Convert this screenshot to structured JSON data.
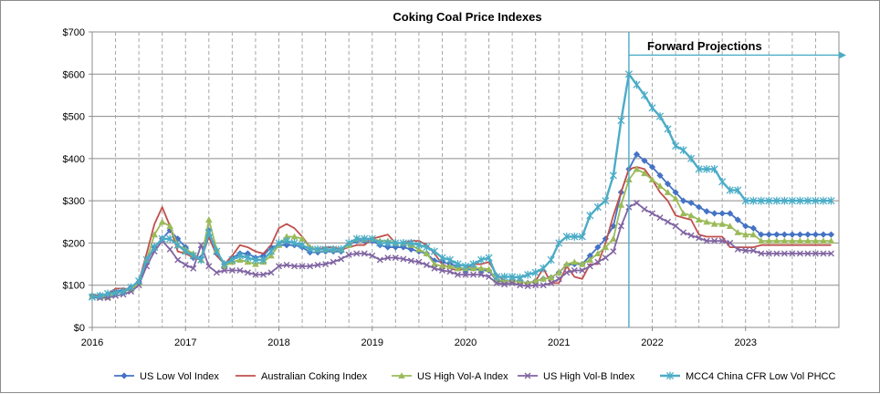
{
  "chart_data": {
    "type": "line",
    "title": "Coking Coal Price Indexes",
    "xlabel": "",
    "ylabel": "",
    "ylim": [
      0,
      700
    ],
    "xlim": [
      "2016-01-01",
      "2024-01-01"
    ],
    "y_ticks": [
      "$0",
      "$100",
      "$200",
      "$300",
      "$400",
      "$500",
      "$600",
      "$700"
    ],
    "x_ticks": [
      "2016",
      "2017",
      "2018",
      "2019",
      "2020",
      "2021",
      "2022",
      "2023"
    ],
    "grid": {
      "horizontal": true,
      "vertical": "dashed-quarterly"
    },
    "legend_position": "bottom",
    "annotation": {
      "text": "Forward Projections",
      "date": "2021-10-01",
      "y": 645,
      "color": "#4BACC6"
    },
    "x": [
      "2016-01",
      "2016-02",
      "2016-03",
      "2016-04",
      "2016-05",
      "2016-06",
      "2016-07",
      "2016-08",
      "2016-09",
      "2016-10",
      "2016-11",
      "2016-12",
      "2017-01",
      "2017-02",
      "2017-03",
      "2017-04",
      "2017-05",
      "2017-06",
      "2017-07",
      "2017-08",
      "2017-09",
      "2017-10",
      "2017-11",
      "2017-12",
      "2018-01",
      "2018-02",
      "2018-03",
      "2018-04",
      "2018-05",
      "2018-06",
      "2018-07",
      "2018-08",
      "2018-09",
      "2018-10",
      "2018-11",
      "2018-12",
      "2019-01",
      "2019-02",
      "2019-03",
      "2019-04",
      "2019-05",
      "2019-06",
      "2019-07",
      "2019-08",
      "2019-09",
      "2019-10",
      "2019-11",
      "2019-12",
      "2020-01",
      "2020-02",
      "2020-03",
      "2020-04",
      "2020-05",
      "2020-06",
      "2020-07",
      "2020-08",
      "2020-09",
      "2020-10",
      "2020-11",
      "2020-12",
      "2021-01",
      "2021-02",
      "2021-03",
      "2021-04",
      "2021-05",
      "2021-06",
      "2021-07",
      "2021-08",
      "2021-09",
      "2021-10",
      "2021-11",
      "2021-12",
      "2022-01",
      "2022-02",
      "2022-03",
      "2022-04",
      "2022-05",
      "2022-06",
      "2022-07",
      "2022-08",
      "2022-09",
      "2022-10",
      "2022-11",
      "2022-12",
      "2023-01",
      "2023-02",
      "2023-03",
      "2023-04",
      "2023-05",
      "2023-06",
      "2023-07",
      "2023-08",
      "2023-09",
      "2023-10",
      "2023-11",
      "2023-12"
    ],
    "series": [
      {
        "name": "US Low Vol Index",
        "color": "#4472C4",
        "marker": "diamond",
        "values": [
          75,
          75,
          78,
          85,
          88,
          95,
          108,
          155,
          190,
          210,
          230,
          210,
          190,
          165,
          165,
          230,
          175,
          150,
          165,
          175,
          175,
          165,
          170,
          190,
          195,
          195,
          195,
          190,
          178,
          178,
          180,
          180,
          180,
          195,
          205,
          205,
          205,
          195,
          190,
          190,
          190,
          185,
          180,
          175,
          158,
          155,
          150,
          145,
          135,
          140,
          135,
          135,
          110,
          108,
          110,
          108,
          105,
          110,
          115,
          118,
          130,
          148,
          150,
          150,
          170,
          190,
          210,
          240,
          320,
          375,
          410,
          395,
          380,
          360,
          340,
          320,
          300,
          295,
          285,
          275,
          270,
          270,
          270,
          255,
          240,
          235,
          220,
          220,
          220,
          220,
          220,
          220,
          220,
          220,
          220,
          220
        ]
      },
      {
        "name": "Australian Coking Index",
        "color": "#C0504D",
        "marker": "none",
        "values": [
          78,
          75,
          78,
          92,
          92,
          90,
          108,
          175,
          245,
          285,
          240,
          180,
          175,
          165,
          160,
          215,
          170,
          150,
          170,
          195,
          190,
          180,
          175,
          195,
          235,
          245,
          235,
          215,
          190,
          185,
          190,
          190,
          185,
          190,
          195,
          195,
          210,
          215,
          220,
          200,
          200,
          205,
          205,
          195,
          175,
          150,
          140,
          135,
          140,
          150,
          150,
          155,
          125,
          110,
          110,
          108,
          105,
          110,
          140,
          105,
          105,
          145,
          120,
          115,
          150,
          150,
          200,
          265,
          320,
          375,
          380,
          375,
          350,
          320,
          300,
          265,
          260,
          255,
          220,
          215,
          215,
          215,
          190,
          190,
          190,
          190,
          195,
          195,
          195,
          195,
          195,
          195,
          195,
          195,
          195,
          195
        ]
      },
      {
        "name": "US High Vol-A Index",
        "color": "#9BBB59",
        "marker": "triangle",
        "values": [
          75,
          72,
          72,
          80,
          85,
          90,
          105,
          160,
          220,
          250,
          240,
          195,
          185,
          175,
          160,
          255,
          185,
          145,
          155,
          160,
          155,
          150,
          155,
          170,
          195,
          215,
          215,
          210,
          190,
          185,
          185,
          185,
          185,
          195,
          210,
          210,
          210,
          205,
          205,
          200,
          200,
          195,
          185,
          175,
          150,
          145,
          145,
          140,
          140,
          140,
          140,
          138,
          112,
          110,
          110,
          108,
          105,
          110,
          115,
          118,
          130,
          150,
          155,
          150,
          160,
          175,
          190,
          210,
          290,
          350,
          375,
          365,
          350,
          335,
          320,
          305,
          270,
          265,
          255,
          250,
          245,
          245,
          240,
          225,
          220,
          220,
          205,
          205,
          205,
          205,
          205,
          205,
          205,
          205,
          205,
          205
        ]
      },
      {
        "name": "US High Vol-B Index",
        "color": "#8064A2",
        "marker": "x",
        "values": [
          72,
          70,
          70,
          75,
          78,
          85,
          100,
          145,
          180,
          205,
          185,
          160,
          148,
          140,
          195,
          145,
          130,
          135,
          135,
          135,
          130,
          125,
          125,
          130,
          145,
          148,
          145,
          145,
          145,
          148,
          150,
          155,
          162,
          172,
          175,
          175,
          170,
          160,
          165,
          165,
          162,
          158,
          155,
          148,
          140,
          135,
          132,
          125,
          125,
          125,
          125,
          120,
          105,
          102,
          105,
          100,
          98,
          100,
          100,
          105,
          115,
          130,
          135,
          135,
          145,
          155,
          165,
          180,
          240,
          285,
          295,
          280,
          270,
          260,
          250,
          240,
          225,
          218,
          212,
          205,
          205,
          205,
          200,
          185,
          182,
          182,
          175,
          175,
          175,
          175,
          175,
          175,
          175,
          175,
          175,
          175
        ]
      },
      {
        "name": "MCC4 China CFR Low Vol PHCC",
        "color": "#4BACC6",
        "marker": "star",
        "values": [
          72,
          75,
          80,
          82,
          85,
          95,
          110,
          160,
          190,
          210,
          210,
          195,
          180,
          170,
          160,
          225,
          180,
          150,
          160,
          170,
          165,
          160,
          160,
          180,
          200,
          205,
          200,
          195,
          185,
          185,
          185,
          185,
          185,
          200,
          210,
          210,
          210,
          200,
          200,
          200,
          200,
          200,
          195,
          190,
          180,
          165,
          160,
          150,
          145,
          150,
          160,
          165,
          120,
          120,
          120,
          118,
          125,
          130,
          140,
          160,
          200,
          215,
          215,
          215,
          265,
          285,
          300,
          360,
          490,
          600,
          575,
          550,
          520,
          500,
          470,
          430,
          420,
          400,
          375,
          375,
          375,
          345,
          325,
          325,
          300,
          300,
          300,
          300,
          300,
          300,
          300,
          300,
          300,
          300,
          300,
          300
        ]
      }
    ]
  }
}
